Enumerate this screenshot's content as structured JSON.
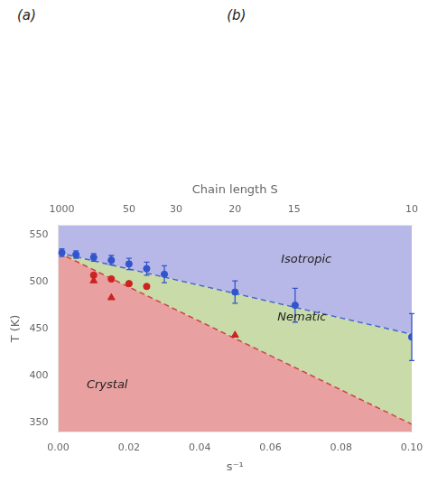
{
  "chart_data": {
    "type": "scatter",
    "xlabel": "s⁻¹",
    "ylabel": "T (K)",
    "x2label": "Chain length S",
    "xlim": [
      0.0,
      0.1
    ],
    "ylim": [
      340,
      560
    ],
    "xticks": [
      {
        "value": 0.0,
        "label": "0.00"
      },
      0.02,
      0.04,
      0.06,
      0.08,
      {
        "value": 0.1,
        "label": "0.10"
      }
    ],
    "yticks": [
      350,
      400,
      450,
      500,
      550
    ],
    "x2lim": [
      0.0,
      0.1
    ],
    "x2ticks": [
      {
        "value": 0.001,
        "label": "1000"
      },
      {
        "value": 0.02,
        "label": "50"
      },
      {
        "value": 0.0333,
        "label": "30"
      },
      {
        "value": 0.05,
        "label": "20"
      },
      {
        "value": 0.0667,
        "label": "15"
      },
      {
        "value": 0.1,
        "label": "10"
      }
    ],
    "grid": false,
    "boundaries": [
      {
        "type": "line",
        "line_style": "dashed",
        "color": "#cc4444",
        "x": [
          0.0,
          0.1
        ],
        "values": [
          531,
          348
        ]
      },
      {
        "type": "line",
        "line_style": "dashed",
        "color": "#4466cc",
        "x": [
          0.0,
          0.1
        ],
        "values": [
          531,
          444
        ]
      }
    ],
    "regions": [
      {
        "text": "Crystal",
        "color": "#e8a0a0",
        "x": 0.008,
        "y": 390
      },
      {
        "text": "Nematic",
        "color": "#c8dba8",
        "x": 0.062,
        "y": 462
      },
      {
        "text": "Isotropic",
        "color": "#b8b8e8",
        "x": 0.063,
        "y": 524
      }
    ],
    "series": [
      {
        "type": "scatter",
        "marker": "circle",
        "color": "#3355cc",
        "x": [
          0.001,
          0.005,
          0.01,
          0.015,
          0.02,
          0.025,
          0.03,
          0.05,
          0.067,
          0.1
        ],
        "values": [
          531,
          529,
          526,
          523,
          519,
          514,
          508,
          489,
          475,
          441
        ],
        "error_low": [
          4,
          4,
          4,
          5,
          6,
          7,
          9,
          12,
          18,
          25
        ],
        "error_high": [
          4,
          4,
          4,
          5,
          6,
          7,
          9,
          12,
          18,
          25
        ]
      },
      {
        "type": "scatter",
        "marker": "circle",
        "color": "#cc2222",
        "x": [
          0.01,
          0.015,
          0.02,
          0.025
        ],
        "values": [
          507,
          503,
          498,
          495
        ]
      },
      {
        "type": "scatter",
        "marker": "triangle",
        "color": "#cc2222",
        "x": [
          0.01,
          0.015,
          0.05
        ],
        "values": [
          501,
          483,
          443
        ]
      }
    ],
    "annotations": [
      {
        "text": "(a)"
      },
      {
        "text": "(b)"
      }
    ]
  }
}
